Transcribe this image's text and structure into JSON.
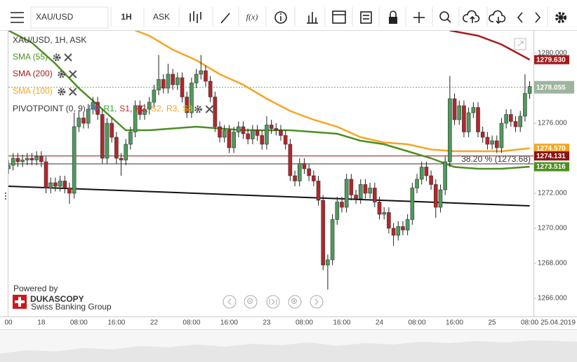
{
  "toolbar": {
    "symbol": "XAU/USD",
    "period": "1H",
    "side": "ASK",
    "fx": "f(x)"
  },
  "logo": {
    "powered_by": "Powered by",
    "brand": "DUKASCOPY",
    "tagline": "Swiss Banking Group"
  },
  "chart_data": {
    "type": "candlestick",
    "title": "XAU/USD, 1H, ASK",
    "date_label": "25.04.2019",
    "up_color": "#4f9a5c",
    "down_color": "#b3262a",
    "wick_color": "#222",
    "categories": [
      "00",
      null,
      null,
      null,
      null,
      null,
      null,
      "18",
      null,
      null,
      null,
      null,
      null,
      null,
      null,
      "08:00",
      null,
      null,
      null,
      null,
      null,
      null,
      null,
      "16:00",
      null,
      null,
      null,
      null,
      null,
      null,
      null,
      "22",
      null,
      null,
      null,
      null,
      null,
      null,
      null,
      "08:00",
      null,
      null,
      null,
      null,
      null,
      null,
      null,
      "16:00",
      null,
      null,
      null,
      null,
      null,
      null,
      null,
      "23",
      null,
      null,
      null,
      null,
      null,
      null,
      null,
      "08:00",
      null,
      null,
      null,
      null,
      null,
      null,
      null,
      "16:00",
      null,
      null,
      null,
      null,
      null,
      null,
      null,
      "24",
      null,
      null,
      null,
      null,
      null,
      null,
      null,
      "08:00",
      null,
      null,
      null,
      null,
      null,
      null,
      null,
      "16:00",
      null,
      null,
      null,
      null,
      null,
      null,
      null,
      "25",
      null,
      null,
      null,
      null,
      null,
      null,
      null,
      "08:00"
    ],
    "open": [
      1273.4,
      1273.6,
      1274.0,
      1273.8,
      1273.9,
      1274.0,
      1273.9,
      1274.1,
      1273.8,
      1272.3,
      1272.6,
      1272.4,
      1272.7,
      1272.3,
      1272.0,
      1275.8,
      1276.3,
      1276.0,
      1276.8,
      1277.2,
      1276.5,
      1274.0,
      1276.0,
      1275.2,
      1274.0,
      1273.9,
      1274.8,
      1275.5,
      1277.0,
      1276.5,
      1276.8,
      1277.2,
      1277.9,
      1278.5,
      1278.0,
      1278.8,
      1278.2,
      1278.6,
      1277.5,
      1276.6,
      1278.3,
      1278.8,
      1279.0,
      1278.4,
      1277.5,
      1275.8,
      1275.2,
      1275.6,
      1274.6,
      1275.5,
      1275.8,
      1275.4,
      1275.1,
      1275.6,
      1275.3,
      1274.8,
      1275.9,
      1275.7,
      1275.6,
      1275.3,
      1274.8,
      1273.0,
      1272.7,
      1273.7,
      1273.4,
      1273.0,
      1272.7,
      1271.6,
      1267.9,
      1268.2,
      1270.5,
      1271.5,
      1271.2,
      1272.8,
      1271.9,
      1271.7,
      1272.5,
      1272.0,
      1272.3,
      1271.5,
      1270.8,
      1270.9,
      1270.0,
      1269.6,
      1270.1,
      1269.9,
      1270.5,
      1272.3,
      1272.8,
      1273.5,
      1273.0,
      1272.5,
      1271.2,
      1272.2,
      1273.8,
      1277.4,
      1276.2,
      1277.0,
      1275.5,
      1276.6,
      1276.9,
      1275.5,
      1275.2,
      1274.8,
      1275.0,
      1274.6,
      1276.0,
      1276.5,
      1276.1,
      1275.8,
      1276.4,
      1277.7
    ],
    "high": [
      1273.9,
      1274.3,
      1274.3,
      1274.2,
      1274.3,
      1274.3,
      1274.4,
      1274.4,
      1274.1,
      1272.9,
      1272.9,
      1273.0,
      1273.0,
      1272.6,
      1276.6,
      1276.7,
      1276.6,
      1277.1,
      1277.5,
      1277.5,
      1276.8,
      1276.3,
      1276.3,
      1275.5,
      1274.3,
      1275.1,
      1275.8,
      1277.3,
      1277.3,
      1277.1,
      1277.5,
      1278.2,
      1279.9,
      1278.8,
      1279.4,
      1279.1,
      1278.9,
      1278.9,
      1277.8,
      1278.6,
      1279.1,
      1279.9,
      1279.3,
      1278.7,
      1277.8,
      1276.1,
      1275.9,
      1275.9,
      1275.8,
      1276.1,
      1276.1,
      1275.7,
      1275.9,
      1275.9,
      1275.6,
      1276.4,
      1276.2,
      1276.0,
      1275.9,
      1275.6,
      1275.1,
      1273.3,
      1274.0,
      1274.0,
      1273.7,
      1273.3,
      1273.0,
      1271.9,
      1268.5,
      1270.8,
      1271.8,
      1271.8,
      1273.1,
      1273.1,
      1272.2,
      1272.8,
      1272.8,
      1272.6,
      1272.6,
      1271.8,
      1271.2,
      1271.2,
      1270.3,
      1270.4,
      1270.4,
      1270.8,
      1272.6,
      1273.1,
      1273.8,
      1273.8,
      1273.3,
      1272.8,
      1272.5,
      1274.1,
      1278.7,
      1277.7,
      1277.3,
      1277.3,
      1276.9,
      1277.2,
      1277.2,
      1275.8,
      1275.5,
      1275.3,
      1275.3,
      1276.3,
      1276.8,
      1276.8,
      1276.4,
      1276.7,
      1278.8,
      1278.4
    ],
    "low": [
      1273.1,
      1273.3,
      1273.5,
      1273.5,
      1273.6,
      1273.6,
      1273.6,
      1273.5,
      1272.0,
      1272.0,
      1272.1,
      1272.1,
      1272.0,
      1271.4,
      1271.7,
      1275.5,
      1275.7,
      1275.7,
      1276.5,
      1276.2,
      1273.7,
      1273.7,
      1274.9,
      1273.7,
      1273.0,
      1273.6,
      1274.5,
      1275.2,
      1276.2,
      1276.2,
      1276.5,
      1276.9,
      1277.6,
      1277.7,
      1277.7,
      1277.9,
      1277.9,
      1277.2,
      1276.3,
      1276.3,
      1278.0,
      1278.5,
      1278.1,
      1277.2,
      1275.5,
      1274.9,
      1274.9,
      1274.3,
      1274.3,
      1275.2,
      1275.1,
      1274.8,
      1274.8,
      1275.0,
      1274.5,
      1274.5,
      1275.4,
      1275.3,
      1275.0,
      1274.5,
      1272.7,
      1272.4,
      1272.4,
      1273.1,
      1272.7,
      1272.4,
      1271.3,
      1267.6,
      1266.5,
      1267.9,
      1270.2,
      1270.9,
      1270.9,
      1271.6,
      1271.4,
      1271.4,
      1271.7,
      1271.7,
      1271.2,
      1270.5,
      1270.5,
      1269.7,
      1269.0,
      1269.3,
      1269.6,
      1269.6,
      1270.2,
      1272.0,
      1272.5,
      1272.7,
      1272.2,
      1270.6,
      1270.9,
      1271.9,
      1273.5,
      1275.9,
      1275.9,
      1275.2,
      1275.2,
      1276.3,
      1275.2,
      1274.9,
      1274.5,
      1274.5,
      1274.3,
      1274.3,
      1275.7,
      1275.8,
      1275.5,
      1275.5,
      1276.1,
      1277.4
    ],
    "close": [
      1273.6,
      1274.0,
      1273.8,
      1273.9,
      1274.0,
      1273.9,
      1274.1,
      1273.8,
      1272.3,
      1272.6,
      1272.4,
      1272.7,
      1272.3,
      1272.0,
      1275.8,
      1276.3,
      1276.0,
      1276.8,
      1277.2,
      1276.5,
      1274.0,
      1276.0,
      1275.2,
      1274.0,
      1273.9,
      1274.8,
      1275.5,
      1277.0,
      1276.5,
      1276.8,
      1277.2,
      1277.9,
      1278.5,
      1278.0,
      1278.8,
      1278.2,
      1278.6,
      1277.5,
      1276.6,
      1278.3,
      1278.8,
      1279.0,
      1278.4,
      1277.5,
      1275.8,
      1275.2,
      1275.6,
      1274.6,
      1275.5,
      1275.8,
      1275.4,
      1275.1,
      1275.6,
      1275.3,
      1274.8,
      1275.9,
      1275.7,
      1275.6,
      1275.3,
      1274.8,
      1273.0,
      1272.7,
      1273.7,
      1273.4,
      1273.0,
      1272.7,
      1271.6,
      1267.9,
      1268.2,
      1270.5,
      1271.5,
      1271.2,
      1272.8,
      1271.9,
      1271.7,
      1272.5,
      1272.0,
      1272.3,
      1271.5,
      1270.8,
      1270.9,
      1270.0,
      1269.6,
      1270.1,
      1269.9,
      1270.5,
      1272.3,
      1272.8,
      1273.5,
      1273.0,
      1272.5,
      1271.2,
      1272.2,
      1273.8,
      1277.4,
      1276.2,
      1277.0,
      1275.5,
      1276.6,
      1276.9,
      1275.5,
      1275.2,
      1274.8,
      1275.0,
      1274.6,
      1276.0,
      1276.5,
      1276.1,
      1275.8,
      1276.4,
      1277.7,
      1278.1
    ],
    "series": [
      {
        "name": "SMA (55)",
        "type": "line",
        "color": "#4c8f1f",
        "last_label": "1273.516",
        "x": [
          0,
          5,
          10,
          15,
          20,
          25,
          30,
          35,
          40,
          45,
          50,
          55,
          60,
          65,
          70,
          75,
          80,
          85,
          90,
          95,
          100,
          105,
          111
        ],
        "values": [
          1281.3,
          1280.6,
          1279.4,
          1278.0,
          1276.8,
          1275.6,
          1275.6,
          1275.7,
          1275.8,
          1275.7,
          1275.6,
          1275.6,
          1275.6,
          1275.5,
          1275.4,
          1275.0,
          1274.8,
          1274.4,
          1274.0,
          1273.5,
          1273.4,
          1273.4,
          1273.516
        ]
      },
      {
        "name": "SMA (200)",
        "type": "line",
        "color": "#a51c1c",
        "last_label": "1279.630",
        "x": [
          94,
          100,
          105,
          111
        ],
        "values": [
          1281.3,
          1281.0,
          1280.5,
          1279.63
        ]
      },
      {
        "name": "SMA (100)",
        "type": "line",
        "color": "#f5a623",
        "last_label": "1274.570",
        "x": [
          27,
          30,
          35,
          40,
          45,
          50,
          55,
          60,
          65,
          70,
          75,
          80,
          85,
          90,
          95,
          100,
          105,
          111
        ],
        "values": [
          1281.3,
          1281.0,
          1280.2,
          1279.6,
          1278.8,
          1278.2,
          1277.4,
          1276.7,
          1276.2,
          1275.8,
          1275.2,
          1274.9,
          1274.8,
          1274.5,
          1274.4,
          1274.4,
          1274.4,
          1274.57
        ]
      }
    ],
    "pivot": {
      "name": "PIVOTPOINT (0, 9)",
      "items": [
        {
          "text": "PP,",
          "color": "#3a7fd5"
        },
        {
          "text": "R1,",
          "color": "#3c9a2a"
        },
        {
          "text": "S1,",
          "color": "#c0282d"
        },
        {
          "text": "R2,",
          "color": "#c0282d"
        },
        {
          "text": "S2,",
          "color": "#f5a623"
        },
        {
          "text": "R3,",
          "color": "#e8a317"
        },
        {
          "text": "S3",
          "color": "#e8c817"
        }
      ]
    },
    "trendlines": [
      {
        "x": [
          0,
          111
        ],
        "values": [
          1272.4,
          1271.28
        ],
        "color": "#111"
      }
    ],
    "levels": [
      {
        "value": 1274.131,
        "color": "#8b1414",
        "label": "1274.131"
      },
      {
        "value": 1273.68,
        "color": "#333",
        "annotation": "38.20 % (1273.68)"
      }
    ],
    "last_price": {
      "value": 1278.055,
      "label": "1278.055",
      "color": "#9db59d"
    },
    "ylim": [
      1264.96,
      1281.28
    ],
    "yticks": [
      {
        "value": 1266,
        "label": "1266.000"
      },
      {
        "value": 1268,
        "label": "1268.000"
      },
      {
        "value": 1270,
        "label": "1270.000"
      },
      {
        "value": 1272,
        "label": "1272.000"
      },
      {
        "value": 1274,
        "label": "1274.000"
      },
      {
        "value": 1276,
        "label": "1276.000"
      },
      {
        "value": 1278,
        "label": "1278.000"
      },
      {
        "value": 1280,
        "label": "1280.000"
      }
    ],
    "grid": false
  }
}
